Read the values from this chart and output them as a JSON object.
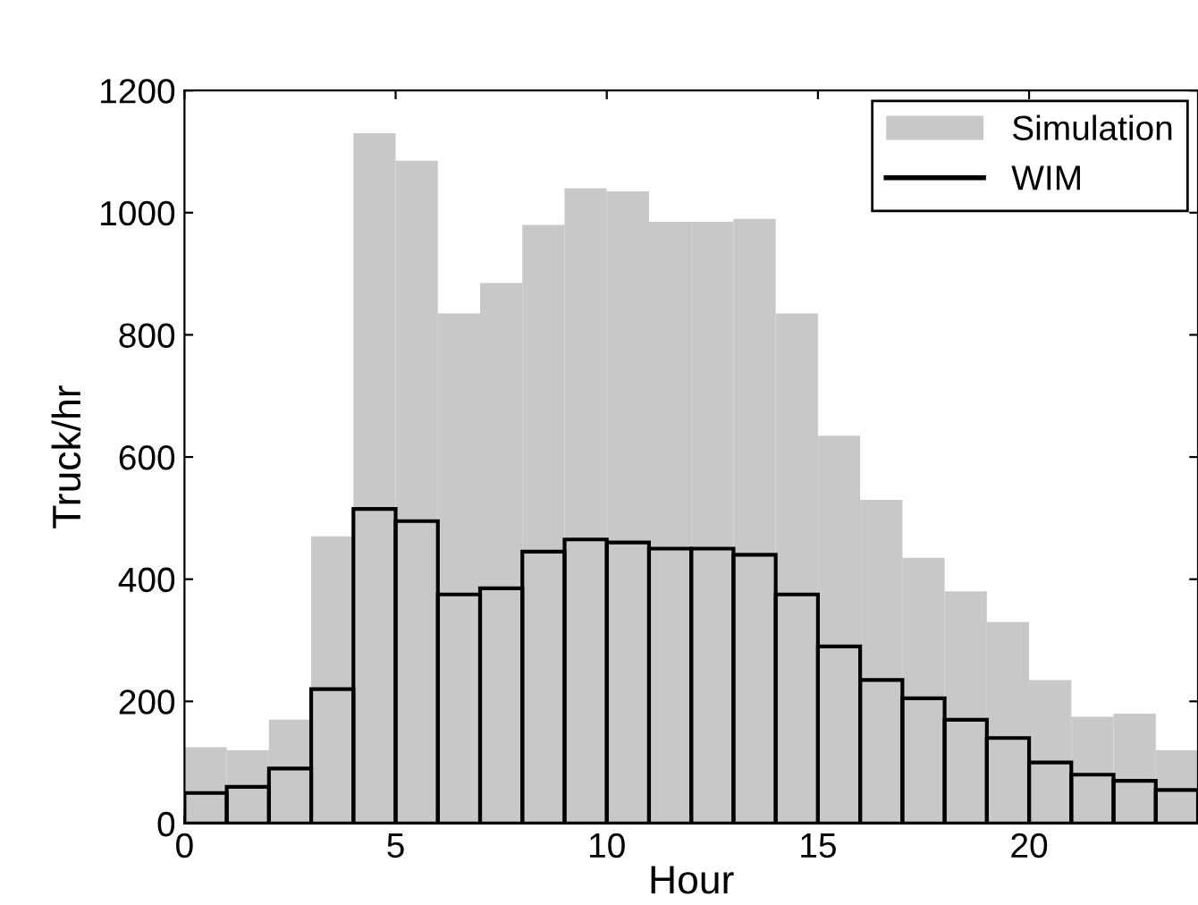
{
  "chart_data": {
    "type": "histogram",
    "xlabel": "Hour",
    "ylabel": "Truck/hr",
    "bins": [
      0,
      1,
      2,
      3,
      4,
      5,
      6,
      7,
      8,
      9,
      10,
      11,
      12,
      13,
      14,
      15,
      16,
      17,
      18,
      19,
      20,
      21,
      22,
      23,
      24
    ],
    "series": [
      {
        "name": "Simulation",
        "color": "#c8c8c8",
        "values": [
          125,
          120,
          170,
          470,
          1130,
          1085,
          835,
          885,
          980,
          1040,
          1035,
          985,
          985,
          990,
          835,
          635,
          530,
          435,
          380,
          330,
          235,
          175,
          180,
          120
        ]
      },
      {
        "name": "WIM",
        "color": "#000000",
        "values": [
          50,
          60,
          90,
          220,
          515,
          495,
          375,
          385,
          445,
          465,
          460,
          450,
          450,
          440,
          375,
          290,
          235,
          205,
          170,
          140,
          100,
          80,
          70,
          55
        ]
      }
    ],
    "xlim": [
      0,
      24
    ],
    "xticks": [
      0,
      5,
      10,
      15,
      20
    ],
    "ylim": [
      0,
      1200
    ],
    "yticks": [
      0,
      200,
      400,
      600,
      800,
      1000,
      1200
    ],
    "grid": false,
    "legend": "top right"
  }
}
